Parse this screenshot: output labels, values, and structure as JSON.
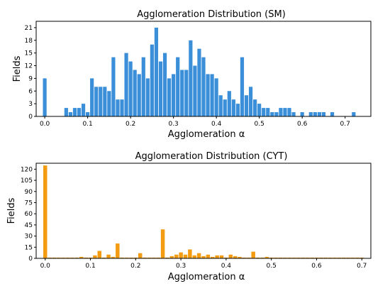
{
  "chart_data": [
    {
      "type": "bar",
      "title": "Agglomeration Distribution (SM)",
      "xlabel": "Agglomeration α",
      "ylabel": "Fields",
      "color": "#3a8fd8",
      "xlim": [
        -0.02,
        0.76
      ],
      "ylim": [
        0,
        22.5
      ],
      "grid": false,
      "bin_width": 0.01,
      "xticks": [
        0.0,
        0.1,
        0.2,
        0.3,
        0.4,
        0.5,
        0.6,
        0.7
      ],
      "xtick_labels": [
        "0.0",
        "0.1",
        "0.2",
        "0.3",
        "0.4",
        "0.5",
        "0.6",
        "0.7"
      ],
      "yticks": [
        0,
        3,
        6,
        9,
        12,
        15,
        18,
        21
      ],
      "ytick_labels": [
        "0",
        "3",
        "6",
        "9",
        "12",
        "15",
        "18",
        "21"
      ],
      "x": [
        0.0,
        0.05,
        0.06,
        0.07,
        0.08,
        0.09,
        0.1,
        0.11,
        0.12,
        0.13,
        0.14,
        0.15,
        0.16,
        0.17,
        0.18,
        0.19,
        0.2,
        0.21,
        0.22,
        0.23,
        0.24,
        0.25,
        0.26,
        0.27,
        0.28,
        0.29,
        0.3,
        0.31,
        0.32,
        0.33,
        0.34,
        0.35,
        0.36,
        0.37,
        0.38,
        0.39,
        0.4,
        0.41,
        0.42,
        0.43,
        0.44,
        0.45,
        0.46,
        0.47,
        0.48,
        0.49,
        0.5,
        0.51,
        0.52,
        0.53,
        0.54,
        0.55,
        0.56,
        0.57,
        0.58,
        0.6,
        0.62,
        0.63,
        0.64,
        0.65,
        0.67,
        0.72
      ],
      "values": [
        9,
        2,
        1,
        2,
        2,
        3,
        1,
        9,
        7,
        7,
        7,
        6,
        14,
        4,
        4,
        15,
        13,
        11,
        10,
        14,
        9,
        17,
        21,
        13,
        15,
        9,
        10,
        14,
        11,
        11,
        18,
        12,
        16,
        14,
        10,
        10,
        9,
        5,
        4,
        6,
        4,
        3,
        14,
        5,
        7,
        4,
        3,
        2,
        2,
        1,
        1,
        2,
        2,
        2,
        1,
        1,
        1,
        1,
        1,
        1,
        1,
        1
      ]
    },
    {
      "type": "bar",
      "title": "Agglomeration Distribution (CYT)",
      "xlabel": "Agglomeration α",
      "ylabel": "Fields",
      "color": "#f39c12",
      "xlim": [
        -0.02,
        0.72
      ],
      "ylim": [
        0,
        128
      ],
      "grid": false,
      "bin_width": 0.01,
      "xticks": [
        0.0,
        0.1,
        0.2,
        0.3,
        0.4,
        0.5,
        0.6,
        0.7
      ],
      "xtick_labels": [
        "0.0",
        "0.1",
        "0.2",
        "0.3",
        "0.4",
        "0.5",
        "0.6",
        "0.7"
      ],
      "yticks": [
        0,
        15,
        30,
        45,
        60,
        75,
        90,
        105,
        120
      ],
      "ytick_labels": [
        "0",
        "15",
        "30",
        "45",
        "60",
        "75",
        "90",
        "105",
        "120"
      ],
      "x": [
        0.0,
        0.01,
        0.02,
        0.03,
        0.04,
        0.05,
        0.06,
        0.07,
        0.08,
        0.09,
        0.1,
        0.11,
        0.12,
        0.13,
        0.14,
        0.15,
        0.16,
        0.17,
        0.18,
        0.19,
        0.2,
        0.21,
        0.22,
        0.23,
        0.24,
        0.25,
        0.26,
        0.27,
        0.28,
        0.29,
        0.3,
        0.31,
        0.32,
        0.33,
        0.34,
        0.35,
        0.36,
        0.37,
        0.38,
        0.39,
        0.4,
        0.41,
        0.42,
        0.43,
        0.44,
        0.45,
        0.46,
        0.47,
        0.48,
        0.49,
        0.5,
        0.51,
        0.52,
        0.53,
        0.54,
        0.55,
        0.56,
        0.57,
        0.58,
        0.59,
        0.6,
        0.61,
        0.62,
        0.63,
        0.64,
        0.65,
        0.66,
        0.67,
        0.68,
        0.69,
        0.7
      ],
      "values": [
        125,
        1,
        1,
        1,
        1,
        1,
        1,
        1,
        2,
        1,
        1,
        4,
        10,
        1,
        5,
        2,
        20,
        1,
        1,
        1,
        1,
        7,
        1,
        1,
        1,
        1,
        39,
        1,
        3,
        5,
        8,
        5,
        12,
        4,
        7,
        3,
        5,
        2,
        4,
        4,
        1,
        5,
        3,
        2,
        1,
        1,
        9,
        1,
        1,
        2,
        1,
        1,
        1,
        1,
        1,
        1,
        1,
        1,
        1,
        1,
        1,
        1,
        1,
        1,
        1,
        1,
        1,
        1,
        1,
        1,
        1
      ]
    }
  ]
}
